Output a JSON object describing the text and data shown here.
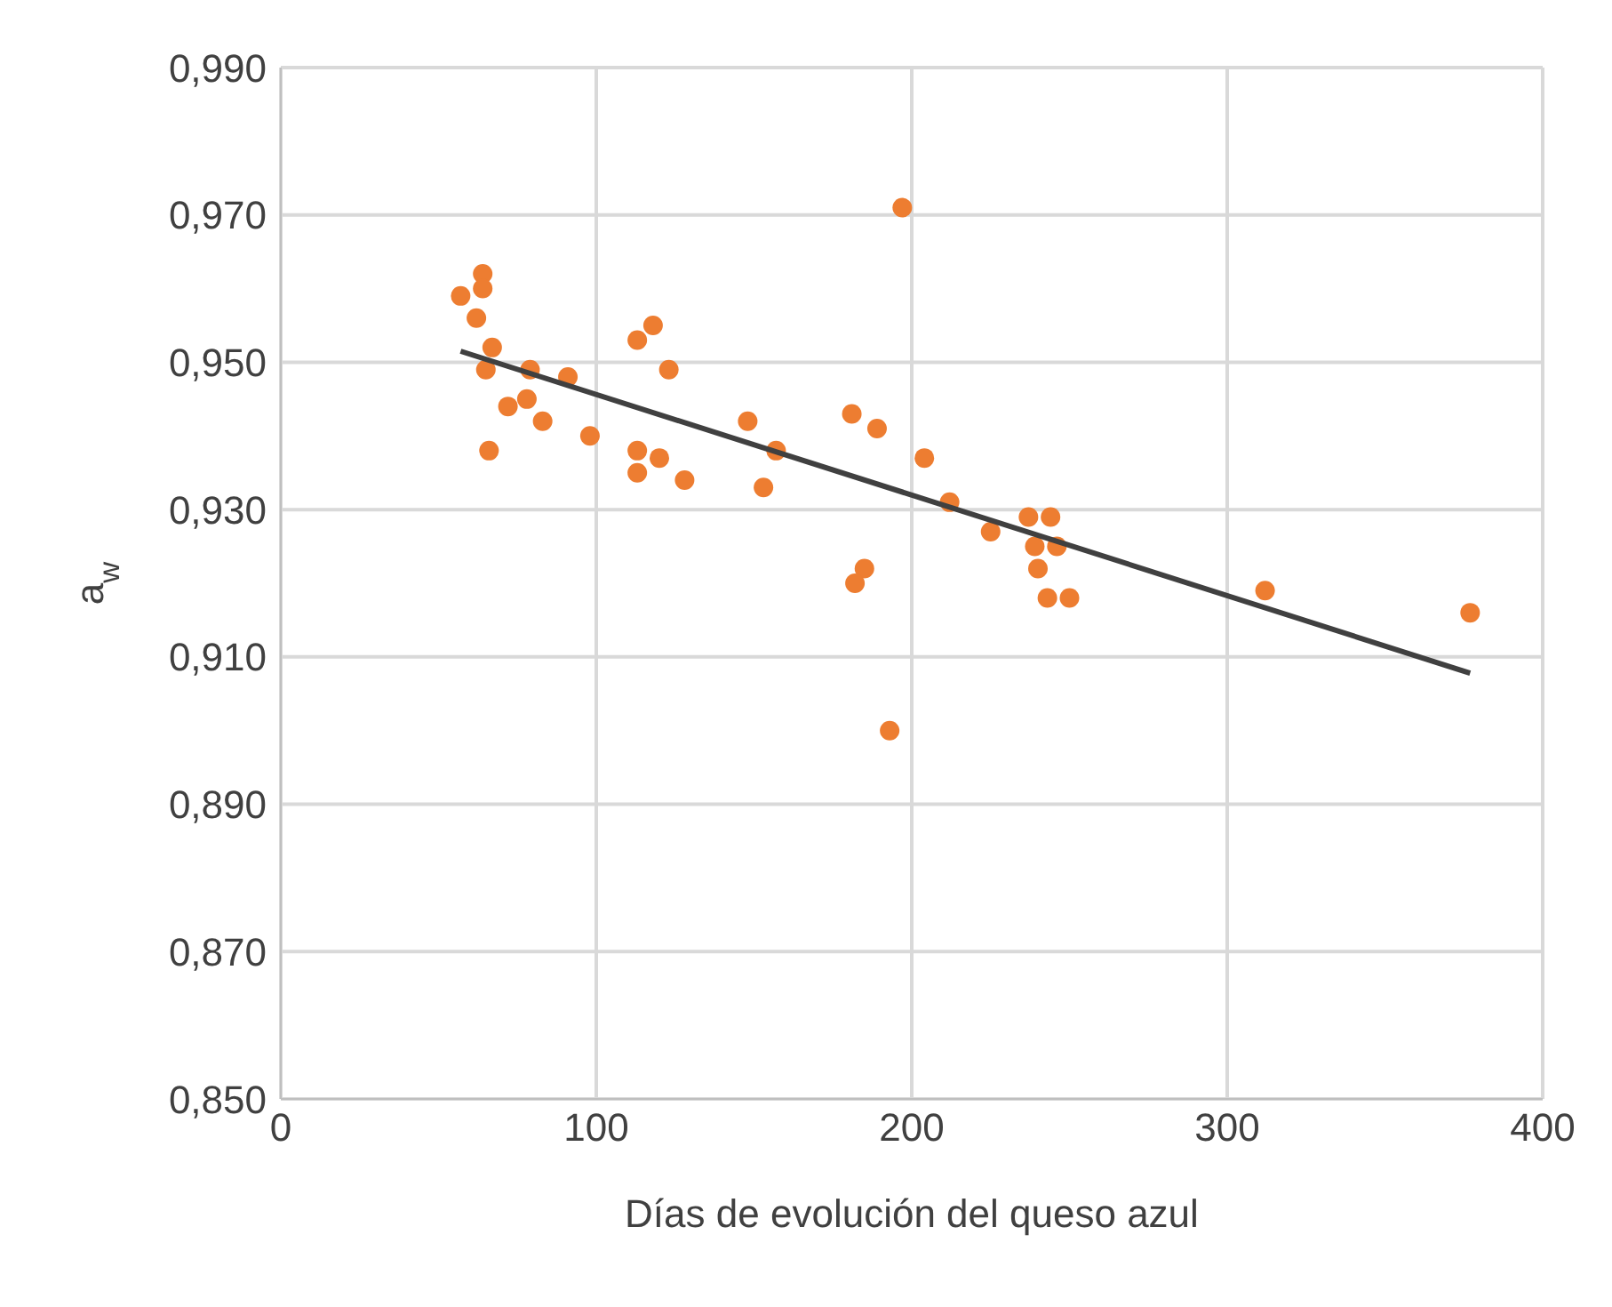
{
  "chart_data": {
    "type": "scatter",
    "xlabel": "Días de evolución del queso azul",
    "ylabel": "a$_{w}$",
    "xlim": [
      0,
      400
    ],
    "xticks": [
      0,
      100,
      200,
      300,
      400
    ],
    "ylim": [
      0.85,
      0.99
    ],
    "yticks": [
      {
        "value": 0.85,
        "label": "0,850"
      },
      {
        "value": 0.87,
        "label": "0,870"
      },
      {
        "value": 0.89,
        "label": "0,890"
      },
      {
        "value": 0.91,
        "label": "0,910"
      },
      {
        "value": 0.93,
        "label": "0,930"
      },
      {
        "value": 0.95,
        "label": "0,950"
      },
      {
        "value": 0.97,
        "label": "0,970"
      },
      {
        "value": 0.99,
        "label": "0,990"
      }
    ],
    "grid": true,
    "series": [
      {
        "marker": "circle",
        "color": "#ed7d31",
        "x": [
          57,
          64,
          64,
          62,
          67,
          65,
          66,
          72,
          79,
          78,
          83,
          91,
          98,
          113,
          118,
          123,
          113,
          120,
          113,
          128,
          148,
          157,
          153,
          181,
          189,
          197,
          204,
          185,
          182,
          193,
          212,
          225,
          237,
          244,
          239,
          246,
          240,
          243,
          250,
          312,
          377
        ],
        "values": [
          0.959,
          0.962,
          0.96,
          0.956,
          0.952,
          0.949,
          0.938,
          0.944,
          0.949,
          0.945,
          0.942,
          0.948,
          0.94,
          0.953,
          0.955,
          0.949,
          0.938,
          0.937,
          0.935,
          0.934,
          0.942,
          0.938,
          0.933,
          0.943,
          0.941,
          0.971,
          0.937,
          0.922,
          0.92,
          0.9,
          0.931,
          0.927,
          0.929,
          0.929,
          0.925,
          0.925,
          0.922,
          0.918,
          0.918,
          0.919,
          0.916
        ]
      },
      {
        "type": "line",
        "color": "#404040",
        "line_style": "solid",
        "x": [
          57,
          377
        ],
        "values": [
          0.9515,
          0.9078
        ]
      }
    ]
  }
}
